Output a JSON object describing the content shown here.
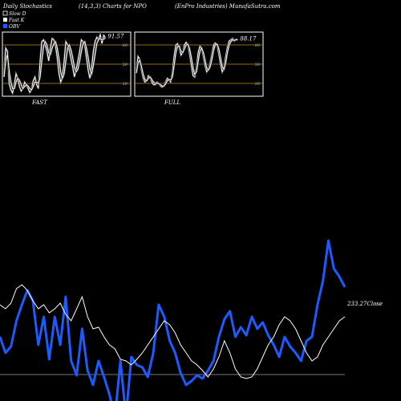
{
  "header": {
    "left": "Daily Stochastics",
    "center": "(14,3,3) Charts for NPO",
    "right": "(EnPro Industries) MunafaSutra.com"
  },
  "legend": [
    {
      "label": "Slow D",
      "box": "outline",
      "color": "#ffffff"
    },
    {
      "label": "Fast K",
      "box": "filled",
      "color": "#ffffff"
    },
    {
      "label": "OBV",
      "box": "filled",
      "color": "#1e5bff"
    }
  ],
  "colors": {
    "background": "#000000",
    "panel": "#000000",
    "border": "#ffffff",
    "level_line": "#c98a1a",
    "line": "#ffffff",
    "obv": "#1e5bff",
    "price": "#ffffff",
    "bottom_line": "#777777"
  },
  "chart_data": [
    {
      "type": "line",
      "name": "fast-stochastic",
      "caption": "FAST",
      "last_value_label": "91.57",
      "levels": [
        80,
        50,
        20
      ],
      "ylim": [
        0,
        100
      ],
      "series": [
        {
          "name": "Fast K",
          "values": [
            35,
            75,
            70,
            20,
            10,
            5,
            18,
            35,
            28,
            15,
            8,
            12,
            22,
            18,
            12,
            6,
            10,
            24,
            30,
            18,
            12,
            55,
            85,
            88,
            80,
            70,
            55,
            75,
            90,
            88,
            78,
            60,
            35,
            22,
            30,
            55,
            85,
            80,
            72,
            58,
            45,
            30,
            42,
            55,
            70,
            88,
            85,
            80,
            60,
            40,
            28,
            45,
            70,
            85,
            92,
            88,
            96,
            82,
            95,
            91.57
          ]
        },
        {
          "name": "Slow D",
          "values": [
            30,
            55,
            65,
            40,
            22,
            12,
            12,
            22,
            28,
            25,
            18,
            12,
            15,
            18,
            16,
            12,
            10,
            15,
            22,
            22,
            20,
            30,
            55,
            78,
            85,
            80,
            68,
            65,
            75,
            82,
            85,
            75,
            58,
            38,
            28,
            35,
            55,
            75,
            80,
            72,
            60,
            45,
            38,
            42,
            55,
            70,
            82,
            85,
            75,
            60,
            42,
            35,
            48,
            65,
            82,
            88,
            90,
            88,
            89,
            91
          ]
        }
      ]
    },
    {
      "type": "line",
      "name": "full-stochastic",
      "caption": "FULL",
      "last_value_label": "88.17",
      "levels": [
        80,
        50,
        20
      ],
      "ylim": [
        0,
        100
      ],
      "series": [
        {
          "name": "Fast K",
          "values": [
            40,
            62,
            58,
            40,
            28,
            22,
            24,
            32,
            30,
            22,
            18,
            18,
            22,
            20,
            16,
            14,
            16,
            22,
            28,
            26,
            22,
            38,
            62,
            80,
            82,
            75,
            64,
            68,
            80,
            84,
            80,
            66,
            48,
            32,
            30,
            45,
            68,
            78,
            74,
            62,
            48,
            38,
            42,
            52,
            66,
            80,
            83,
            80,
            66,
            50,
            38,
            44,
            62,
            76,
            86,
            88,
            90,
            86,
            89,
            88.17
          ]
        },
        {
          "name": "Slow D",
          "values": [
            36,
            52,
            56,
            46,
            34,
            26,
            24,
            28,
            30,
            26,
            22,
            20,
            20,
            20,
            18,
            16,
            16,
            19,
            24,
            26,
            25,
            30,
            48,
            68,
            78,
            78,
            70,
            68,
            74,
            80,
            81,
            74,
            60,
            44,
            34,
            38,
            55,
            70,
            75,
            68,
            56,
            44,
            41,
            46,
            58,
            72,
            80,
            81,
            74,
            60,
            46,
            42,
            52,
            68,
            80,
            85,
            88,
            87,
            88,
            88
          ]
        }
      ]
    },
    {
      "type": "line",
      "name": "price-obv",
      "price_label": "233.27Close",
      "series": [
        {
          "name": "Close",
          "values": [
            380,
            385,
            378,
            360,
            355,
            362,
            375,
            385,
            380,
            390,
            385,
            378,
            392,
            400,
            385,
            370,
            395,
            410,
            408,
            420,
            430,
            435,
            448,
            450,
            455,
            448,
            440,
            430,
            420,
            410,
            400,
            405,
            415,
            430,
            440,
            450,
            455,
            462,
            470,
            460,
            445,
            425,
            440,
            460,
            470,
            472,
            470,
            460,
            445,
            430,
            420,
            405,
            395,
            400,
            410,
            425,
            440,
            450,
            445,
            430,
            420,
            410,
            400,
            395
          ]
        },
        {
          "name": "OBV",
          "values": [
            420,
            440,
            432,
            400,
            380,
            362,
            375,
            430,
            395,
            448,
            395,
            430,
            370,
            450,
            468,
            410,
            462,
            480,
            450,
            470,
            492,
            520,
            450,
            520,
            445,
            455,
            458,
            470,
            440,
            380,
            395,
            425,
            440,
            465,
            480,
            475,
            468,
            472,
            462,
            450,
            420,
            398,
            388,
            420,
            408,
            418,
            395,
            410,
            402,
            418,
            430,
            445,
            420,
            432,
            440,
            450,
            425,
            420,
            380,
            350,
            300,
            335,
            345,
            358
          ]
        }
      ]
    }
  ]
}
